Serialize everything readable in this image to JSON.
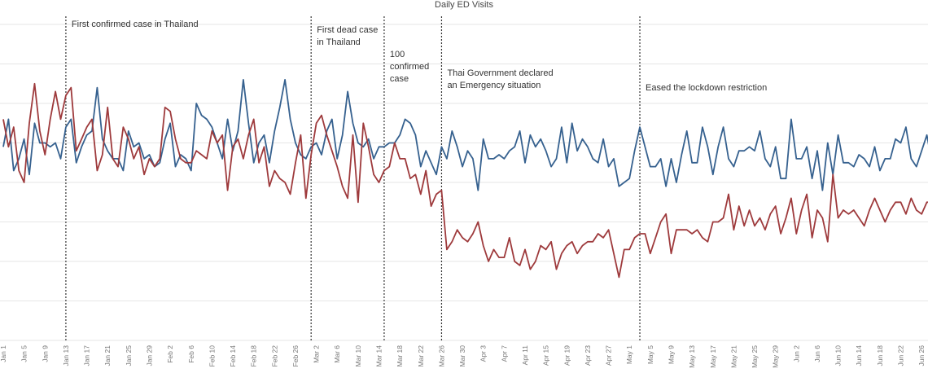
{
  "chart_data": {
    "type": "line",
    "title": "Daily ED Visits",
    "xlabel": "",
    "ylabel": "",
    "ylim": [
      0,
      8
    ],
    "grid": true,
    "x_tick_labels": [
      "Jan 1",
      "Jan 5",
      "Jan 9",
      "Jan 13",
      "Jan 17",
      "Jan 21",
      "Jan 25",
      "Jan 29",
      "Feb 2",
      "Feb 6",
      "Feb 10",
      "Feb 14",
      "Feb 18",
      "Feb 22",
      "Feb 26",
      "Mar 2",
      "Mar 6",
      "Mar 10",
      "Mar 14",
      "Mar 18",
      "Mar 22",
      "Mar 26",
      "Mar 30",
      "Apr 3",
      "Apr 7",
      "Apr 11",
      "Apr 15",
      "Apr 19",
      "Apr 23",
      "Apr 27",
      "May 1",
      "May 5",
      "May 9",
      "May 13",
      "May 17",
      "May 21",
      "May 25",
      "May 29",
      "Jun 2",
      "Jun 6",
      "Jun 10",
      "Jun 14",
      "Jun 18",
      "Jun 22",
      "Jun 26"
    ],
    "x_tick_step_days": 4,
    "series": [
      {
        "name": "blue-series",
        "color": "#36618f",
        "values": [
          4.9,
          5.6,
          4.3,
          4.6,
          5.1,
          4.2,
          5.5,
          5.0,
          5.0,
          4.9,
          5.0,
          4.6,
          5.4,
          5.6,
          4.5,
          4.9,
          5.2,
          5.3,
          6.4,
          5.1,
          4.8,
          4.6,
          4.6,
          4.3,
          5.3,
          4.9,
          5.0,
          4.6,
          4.7,
          4.4,
          4.5,
          5.1,
          5.5,
          4.4,
          4.7,
          4.6,
          4.3,
          6.0,
          5.7,
          5.6,
          5.4,
          5.0,
          4.6,
          5.6,
          4.8,
          5.3,
          6.6,
          5.5,
          4.5,
          5.0,
          5.2,
          4.5,
          5.3,
          5.9,
          6.6,
          5.6,
          5.0,
          4.7,
          4.6,
          4.9,
          5.0,
          4.7,
          5.3,
          5.6,
          4.6,
          5.2,
          6.3,
          5.5,
          5.0,
          4.9,
          5.1,
          4.6,
          4.9,
          4.9,
          5.0,
          5.0,
          5.2,
          5.6,
          5.5,
          5.2,
          4.4,
          4.8,
          4.5,
          4.2,
          4.9,
          4.6,
          5.3,
          4.9,
          4.4,
          4.8,
          4.6,
          3.8,
          5.1,
          4.6,
          4.6,
          4.7,
          4.6,
          4.8,
          4.9,
          5.3,
          4.5,
          5.2,
          4.9,
          5.1,
          4.8,
          4.4,
          4.6,
          5.4,
          4.5,
          5.5,
          4.8,
          5.1,
          4.9,
          4.6,
          4.5,
          5.1,
          4.4,
          4.6,
          3.9,
          4.0,
          4.1,
          4.8,
          5.4,
          4.9,
          4.4,
          4.4,
          4.6,
          3.9,
          4.6,
          4.0,
          4.7,
          5.3,
          4.5,
          4.5,
          5.4,
          4.9,
          4.2,
          4.9,
          5.4,
          4.6,
          4.4,
          4.8,
          4.8,
          4.9,
          4.8,
          5.3,
          4.6,
          4.4,
          4.9,
          4.1,
          4.1,
          5.6,
          4.6,
          4.6,
          4.9,
          4.1,
          4.8,
          3.8,
          5.0,
          4.2,
          5.2,
          4.5,
          4.5,
          4.4,
          4.7,
          4.6,
          4.4,
          4.9,
          4.3,
          4.6,
          4.6,
          5.1,
          5.0,
          5.4,
          4.6,
          4.4,
          4.8,
          5.2,
          4.5,
          5.2,
          4.2
        ]
      },
      {
        "name": "red-series",
        "color": "#9e3a3c",
        "values": [
          5.6,
          4.9,
          5.4,
          4.3,
          4.0,
          5.5,
          6.5,
          5.3,
          4.7,
          5.6,
          6.3,
          5.6,
          6.2,
          6.4,
          4.8,
          5.1,
          5.4,
          5.6,
          4.3,
          4.7,
          5.9,
          4.6,
          4.4,
          5.4,
          5.1,
          4.6,
          4.9,
          4.2,
          4.6,
          4.4,
          4.6,
          5.9,
          5.8,
          5.1,
          4.6,
          4.5,
          4.5,
          4.8,
          4.7,
          4.6,
          5.3,
          5.0,
          5.2,
          3.8,
          4.9,
          5.1,
          4.6,
          5.2,
          5.6,
          4.5,
          4.9,
          3.9,
          4.3,
          4.1,
          4.0,
          3.7,
          4.5,
          5.2,
          3.6,
          4.7,
          5.5,
          5.7,
          5.2,
          4.8,
          4.4,
          3.9,
          3.6,
          5.2,
          3.5,
          5.5,
          4.9,
          4.2,
          4.0,
          4.3,
          4.4,
          5.0,
          4.6,
          4.6,
          4.1,
          4.2,
          3.7,
          4.3,
          3.4,
          3.7,
          3.8,
          2.3,
          2.5,
          2.8,
          2.6,
          2.5,
          2.7,
          3.0,
          2.4,
          2.0,
          2.3,
          2.1,
          2.1,
          2.6,
          2.0,
          1.9,
          2.3,
          1.8,
          2.0,
          2.4,
          2.3,
          2.5,
          1.8,
          2.2,
          2.4,
          2.5,
          2.2,
          2.4,
          2.5,
          2.5,
          2.7,
          2.6,
          2.8,
          2.2,
          1.6,
          2.3,
          2.3,
          2.6,
          2.7,
          2.7,
          2.2,
          2.6,
          3.0,
          3.2,
          2.2,
          2.8,
          2.8,
          2.8,
          2.7,
          2.8,
          2.6,
          2.5,
          3.0,
          3.0,
          3.1,
          3.7,
          2.8,
          3.4,
          2.9,
          3.3,
          2.9,
          3.1,
          2.8,
          3.2,
          3.4,
          2.7,
          3.1,
          3.6,
          2.7,
          3.3,
          3.7,
          2.6,
          3.3,
          3.1,
          2.5,
          4.2,
          3.1,
          3.3,
          3.2,
          3.3,
          3.1,
          2.9,
          3.3,
          3.6,
          3.3,
          3.0,
          3.3,
          3.5,
          3.5,
          3.2,
          3.6,
          3.3,
          3.2,
          3.5,
          3.5,
          3.7,
          3.8
        ]
      }
    ],
    "annotations": [
      {
        "x_index": 12,
        "text": "First confirmed case in Thailand"
      },
      {
        "x_index": 59,
        "text": "First dead case\nin Thailand"
      },
      {
        "x_index": 73,
        "text": "100\nconfirmed\ncase"
      },
      {
        "x_index": 84,
        "text": "Thai Government declared\nan Emergency situation"
      },
      {
        "x_index": 122,
        "text": "Eased the lockdown restriction"
      }
    ]
  }
}
